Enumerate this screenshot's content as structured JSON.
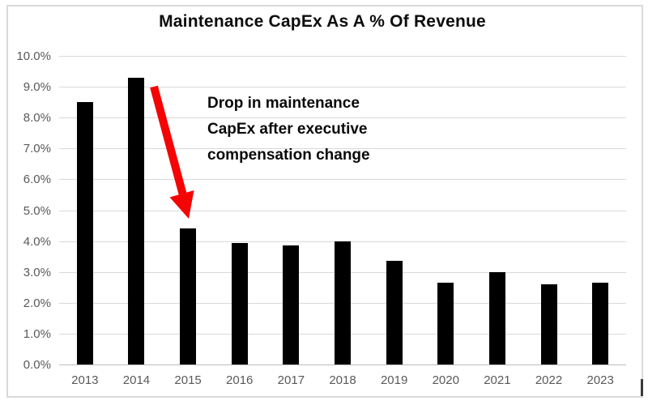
{
  "chart": {
    "title": "Maintenance CapEx As A % Of Revenue"
  },
  "annotation": {
    "lines": [
      "Drop in maintenance",
      "CapEx after executive",
      "compensation change"
    ]
  },
  "chart_data": {
    "type": "bar",
    "title": "Maintenance CapEx As A % Of Revenue",
    "categories": [
      "2013",
      "2014",
      "2015",
      "2016",
      "2017",
      "2018",
      "2019",
      "2020",
      "2021",
      "2022",
      "2023"
    ],
    "values": [
      8.5,
      9.3,
      4.4,
      3.95,
      3.85,
      4.0,
      3.35,
      2.65,
      3.0,
      2.6,
      2.65
    ],
    "unit": "percent of revenue",
    "xlabel": "",
    "ylabel": "",
    "ylim": [
      0,
      10
    ],
    "ytick_step": 1.0,
    "yticks": [
      "0.0%",
      "1.0%",
      "2.0%",
      "3.0%",
      "4.0%",
      "5.0%",
      "6.0%",
      "7.0%",
      "8.0%",
      "9.0%",
      "10.0%"
    ],
    "grid": true,
    "legend": false,
    "annotation": "Drop in maintenance CapEx after executive compensation change"
  },
  "colors": {
    "bar": "#000000",
    "arrow": "#F40404",
    "gridline": "#D9D9D9",
    "axis_line": "#BDBDBD",
    "axis_label": "#595959",
    "title_text": "#0d0d0d",
    "frame_border": "#D9D9D9",
    "frame_dark_segment": "#3A3A3A",
    "background": "#FFFFFF"
  }
}
